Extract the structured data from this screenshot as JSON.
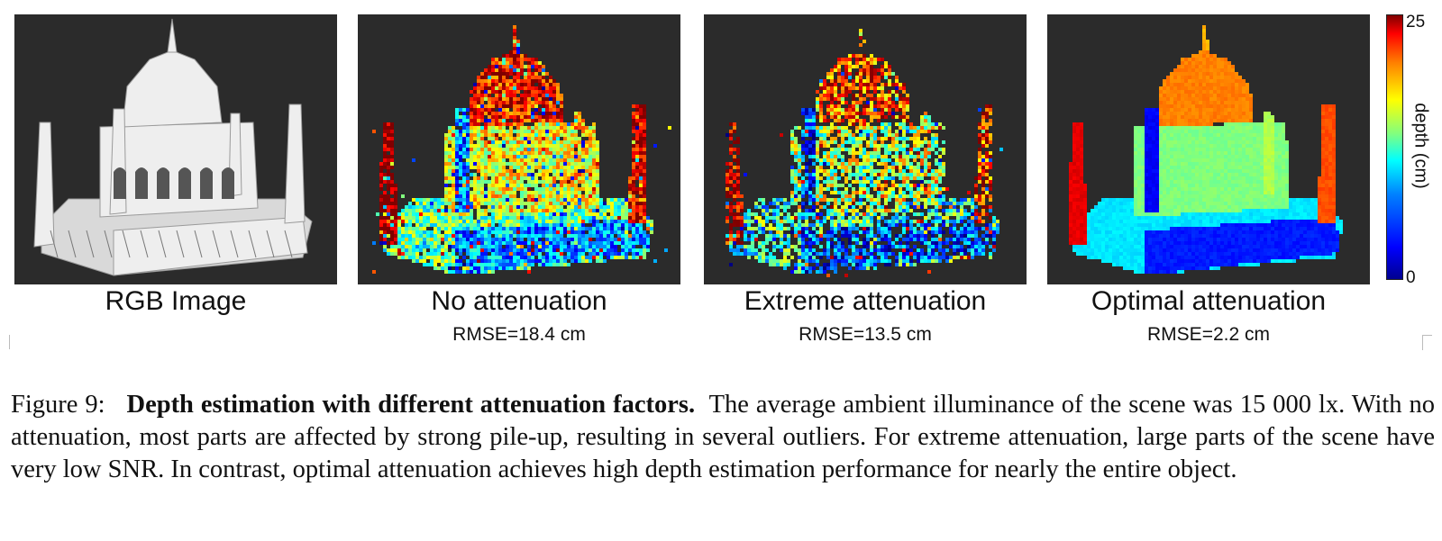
{
  "figure": {
    "panels": [
      {
        "title": "RGB Image",
        "rmse": "",
        "style": "rgb"
      },
      {
        "title": "No attenuation",
        "rmse": "RMSE=18.4 cm",
        "style": "noisy"
      },
      {
        "title": "Extreme attenuation",
        "rmse": "RMSE=13.5 cm",
        "style": "extreme"
      },
      {
        "title": "Optimal attenuation",
        "rmse": "RMSE=2.2 cm",
        "style": "optimal"
      }
    ],
    "colorbar": {
      "label": "depth (cm)",
      "min_label": "0",
      "max_label": "25",
      "colormap": "jet"
    },
    "background_color": "#2b2b2b"
  },
  "caption": {
    "number": "Figure 9:",
    "bold_title": "Depth estimation with different attenuation factors.",
    "text": "The average ambient illuminance of the scene was 15 000 lx.  With no attenuation, most parts are affected by strong pile-up, resulting in several outliers.  For extreme attenuation, large parts of the scene have very low SNR. In contrast, optimal attenuation achieves high depth estimation performance for nearly the entire object."
  }
}
